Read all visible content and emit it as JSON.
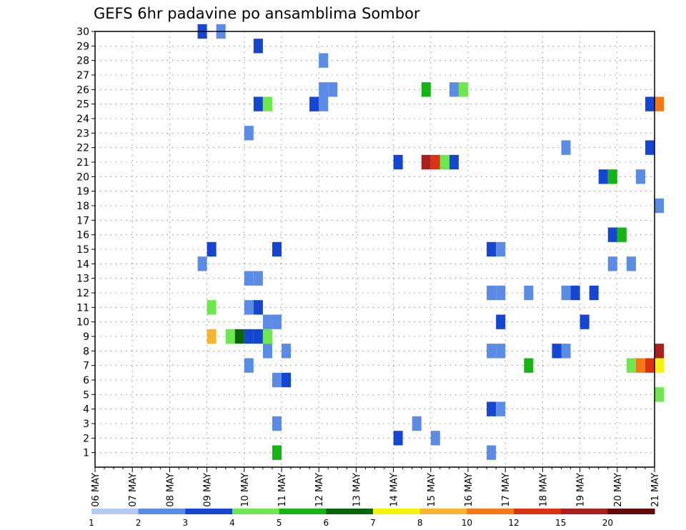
{
  "chart_data": {
    "type": "heatmap",
    "title": "GEFS 6hr padavine po ansamblima Sombor",
    "xlabel": "",
    "ylabel": "",
    "x_tick_labels": [
      "06 MAY",
      "07 MAY",
      "08 MAY",
      "09 MAY",
      "10 MAY",
      "11 MAY",
      "12 MAY",
      "13 MAY",
      "14 MAY",
      "15 MAY",
      "16 MAY",
      "17 MAY",
      "18 MAY",
      "19 MAY",
      "20 MAY",
      "21 MAY"
    ],
    "y_tick_labels": [
      "1",
      "2",
      "3",
      "4",
      "5",
      "6",
      "7",
      "8",
      "9",
      "10",
      "11",
      "12",
      "13",
      "14",
      "15",
      "16",
      "17",
      "18",
      "19",
      "20",
      "21",
      "22",
      "23",
      "24",
      "25",
      "26",
      "27",
      "28",
      "29",
      "30"
    ],
    "xlim_steps": [
      0,
      60
    ],
    "ylim": [
      0,
      30
    ],
    "grid": true,
    "colorbar": {
      "labels": [
        "1",
        "2",
        "3",
        "4",
        "5",
        "6",
        "7",
        "8",
        "10",
        "12",
        "15",
        "20"
      ],
      "colors": [
        "#b4c8f5",
        "#5a8ce6",
        "#1446d2",
        "#6ee650",
        "#14b414",
        "#0a640a",
        "#f5f50a",
        "#f5b432",
        "#f57814",
        "#dc3214",
        "#aa1e1e",
        "#640a0a"
      ]
    },
    "cells": [
      [
        11.5,
        30,
        2
      ],
      [
        13.5,
        30,
        1
      ],
      [
        17.5,
        29,
        2
      ],
      [
        24.5,
        28,
        1
      ],
      [
        35.5,
        26,
        4
      ],
      [
        38.5,
        26,
        1
      ],
      [
        39.5,
        26,
        3
      ],
      [
        24.5,
        26,
        1
      ],
      [
        23.5,
        25,
        2
      ],
      [
        25.5,
        26,
        1
      ],
      [
        17.5,
        25,
        2
      ],
      [
        18.5,
        25,
        3
      ],
      [
        23.5,
        25,
        2
      ],
      [
        24.5,
        25,
        1
      ],
      [
        59.5,
        25,
        2
      ],
      [
        60.5,
        25,
        8
      ],
      [
        16.5,
        23,
        1
      ],
      [
        50.5,
        22,
        1
      ],
      [
        59.5,
        22,
        2
      ],
      [
        32.5,
        21,
        2
      ],
      [
        35.5,
        21,
        10
      ],
      [
        36.5,
        21,
        9
      ],
      [
        37.5,
        21,
        3
      ],
      [
        38.5,
        21,
        2
      ],
      [
        54.5,
        20,
        2
      ],
      [
        55.5,
        20,
        4
      ],
      [
        58.5,
        20,
        1
      ],
      [
        60.5,
        18,
        1
      ],
      [
        55.5,
        16,
        2
      ],
      [
        56.5,
        16,
        4
      ],
      [
        12.5,
        15,
        2
      ],
      [
        19.5,
        15,
        2
      ],
      [
        42.5,
        15,
        2
      ],
      [
        43.5,
        15,
        1
      ],
      [
        11.5,
        14,
        1
      ],
      [
        55.5,
        14,
        1
      ],
      [
        57.5,
        14,
        1
      ],
      [
        16.5,
        13,
        1
      ],
      [
        17.5,
        13,
        1
      ],
      [
        42.5,
        12,
        1
      ],
      [
        43.5,
        12,
        1
      ],
      [
        46.5,
        12,
        1
      ],
      [
        50.5,
        12,
        1
      ],
      [
        51.5,
        12,
        2
      ],
      [
        53.5,
        12,
        2
      ],
      [
        12.5,
        11,
        3
      ],
      [
        16.5,
        11,
        1
      ],
      [
        17.5,
        11,
        2
      ],
      [
        18.5,
        10,
        1
      ],
      [
        19.5,
        10,
        1
      ],
      [
        43.5,
        10,
        2
      ],
      [
        52.5,
        10,
        2
      ],
      [
        12.5,
        9,
        7
      ],
      [
        14.5,
        9,
        3
      ],
      [
        15.5,
        9,
        5
      ],
      [
        16.5,
        9,
        2
      ],
      [
        17.5,
        9,
        2
      ],
      [
        18.5,
        9,
        3
      ],
      [
        18.5,
        8,
        1
      ],
      [
        20.5,
        8,
        1
      ],
      [
        42.5,
        8,
        1
      ],
      [
        43.5,
        8,
        1
      ],
      [
        49.5,
        8,
        2
      ],
      [
        50.5,
        8,
        1
      ],
      [
        60.5,
        8,
        10
      ],
      [
        16.5,
        7,
        1
      ],
      [
        46.5,
        7,
        4
      ],
      [
        57.5,
        7,
        3
      ],
      [
        58.5,
        7,
        8
      ],
      [
        59.5,
        7,
        9
      ],
      [
        60.5,
        7,
        6
      ],
      [
        19.5,
        6,
        1
      ],
      [
        20.5,
        6,
        2
      ],
      [
        60.5,
        5,
        3
      ],
      [
        42.5,
        4,
        2
      ],
      [
        43.5,
        4,
        1
      ],
      [
        19.5,
        3,
        1
      ],
      [
        34.5,
        3,
        1
      ],
      [
        32.5,
        2,
        2
      ],
      [
        36.5,
        2,
        1
      ],
      [
        19.5,
        1,
        4
      ],
      [
        42.5,
        1,
        1
      ]
    ]
  }
}
